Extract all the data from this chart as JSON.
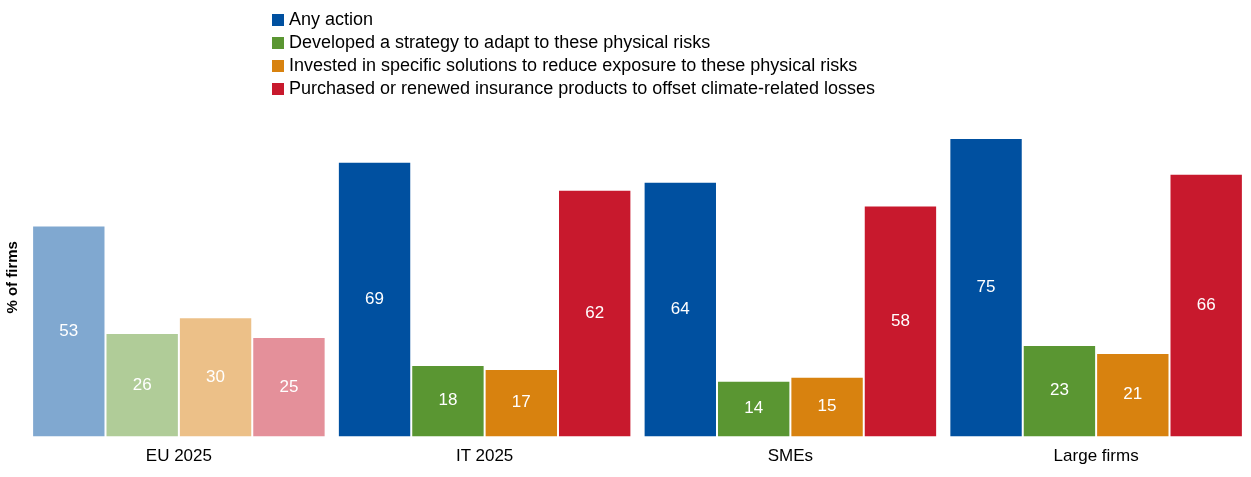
{
  "chart_data": {
    "type": "bar",
    "ylabel": "% of firms",
    "data_labels": true,
    "legend": "top",
    "grid": false,
    "categories": [
      "EU 2025",
      "IT 2025",
      "SMEs",
      "Large firms"
    ],
    "series": [
      {
        "name": "Any action",
        "color": "#0050a0",
        "colors": [
          "#80a8d0",
          "#0050a0",
          "#0050a0",
          "#0050a0"
        ],
        "values": [
          53,
          69,
          64,
          75
        ]
      },
      {
        "name": "Developed a strategy to adapt to these physical risks",
        "color": "#5a9632",
        "colors": [
          "#b0cc98",
          "#5a9632",
          "#5a9632",
          "#5a9632"
        ],
        "values": [
          26,
          18,
          14,
          23
        ]
      },
      {
        "name": "Invested in specific solutions to reduce exposure to these physical risks",
        "color": "#d8820f",
        "colors": [
          "#ecc088",
          "#d8820f",
          "#d8820f",
          "#d8820f"
        ],
        "values": [
          30,
          17,
          15,
          21
        ]
      },
      {
        "name": "Purchased or renewed insurance products to offset climate-related losses",
        "color": "#c8192d",
        "colors": [
          "#e4909a",
          "#c8192d",
          "#c8192d",
          "#c8192d"
        ],
        "values": [
          25,
          62,
          58,
          66
        ]
      }
    ]
  }
}
